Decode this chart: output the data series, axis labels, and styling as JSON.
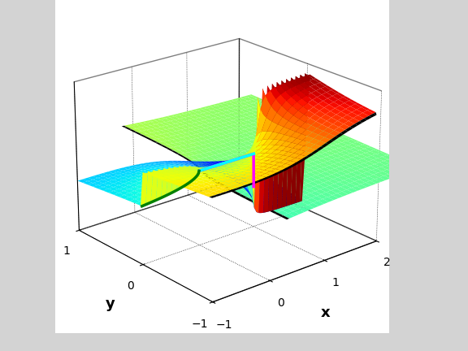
{
  "xlabel": "x",
  "ylabel": "y",
  "background_color": "#d3d3d3",
  "xlim": [
    -1,
    2
  ],
  "ylim": [
    -1,
    1
  ],
  "elev": 22,
  "azim": -130
}
